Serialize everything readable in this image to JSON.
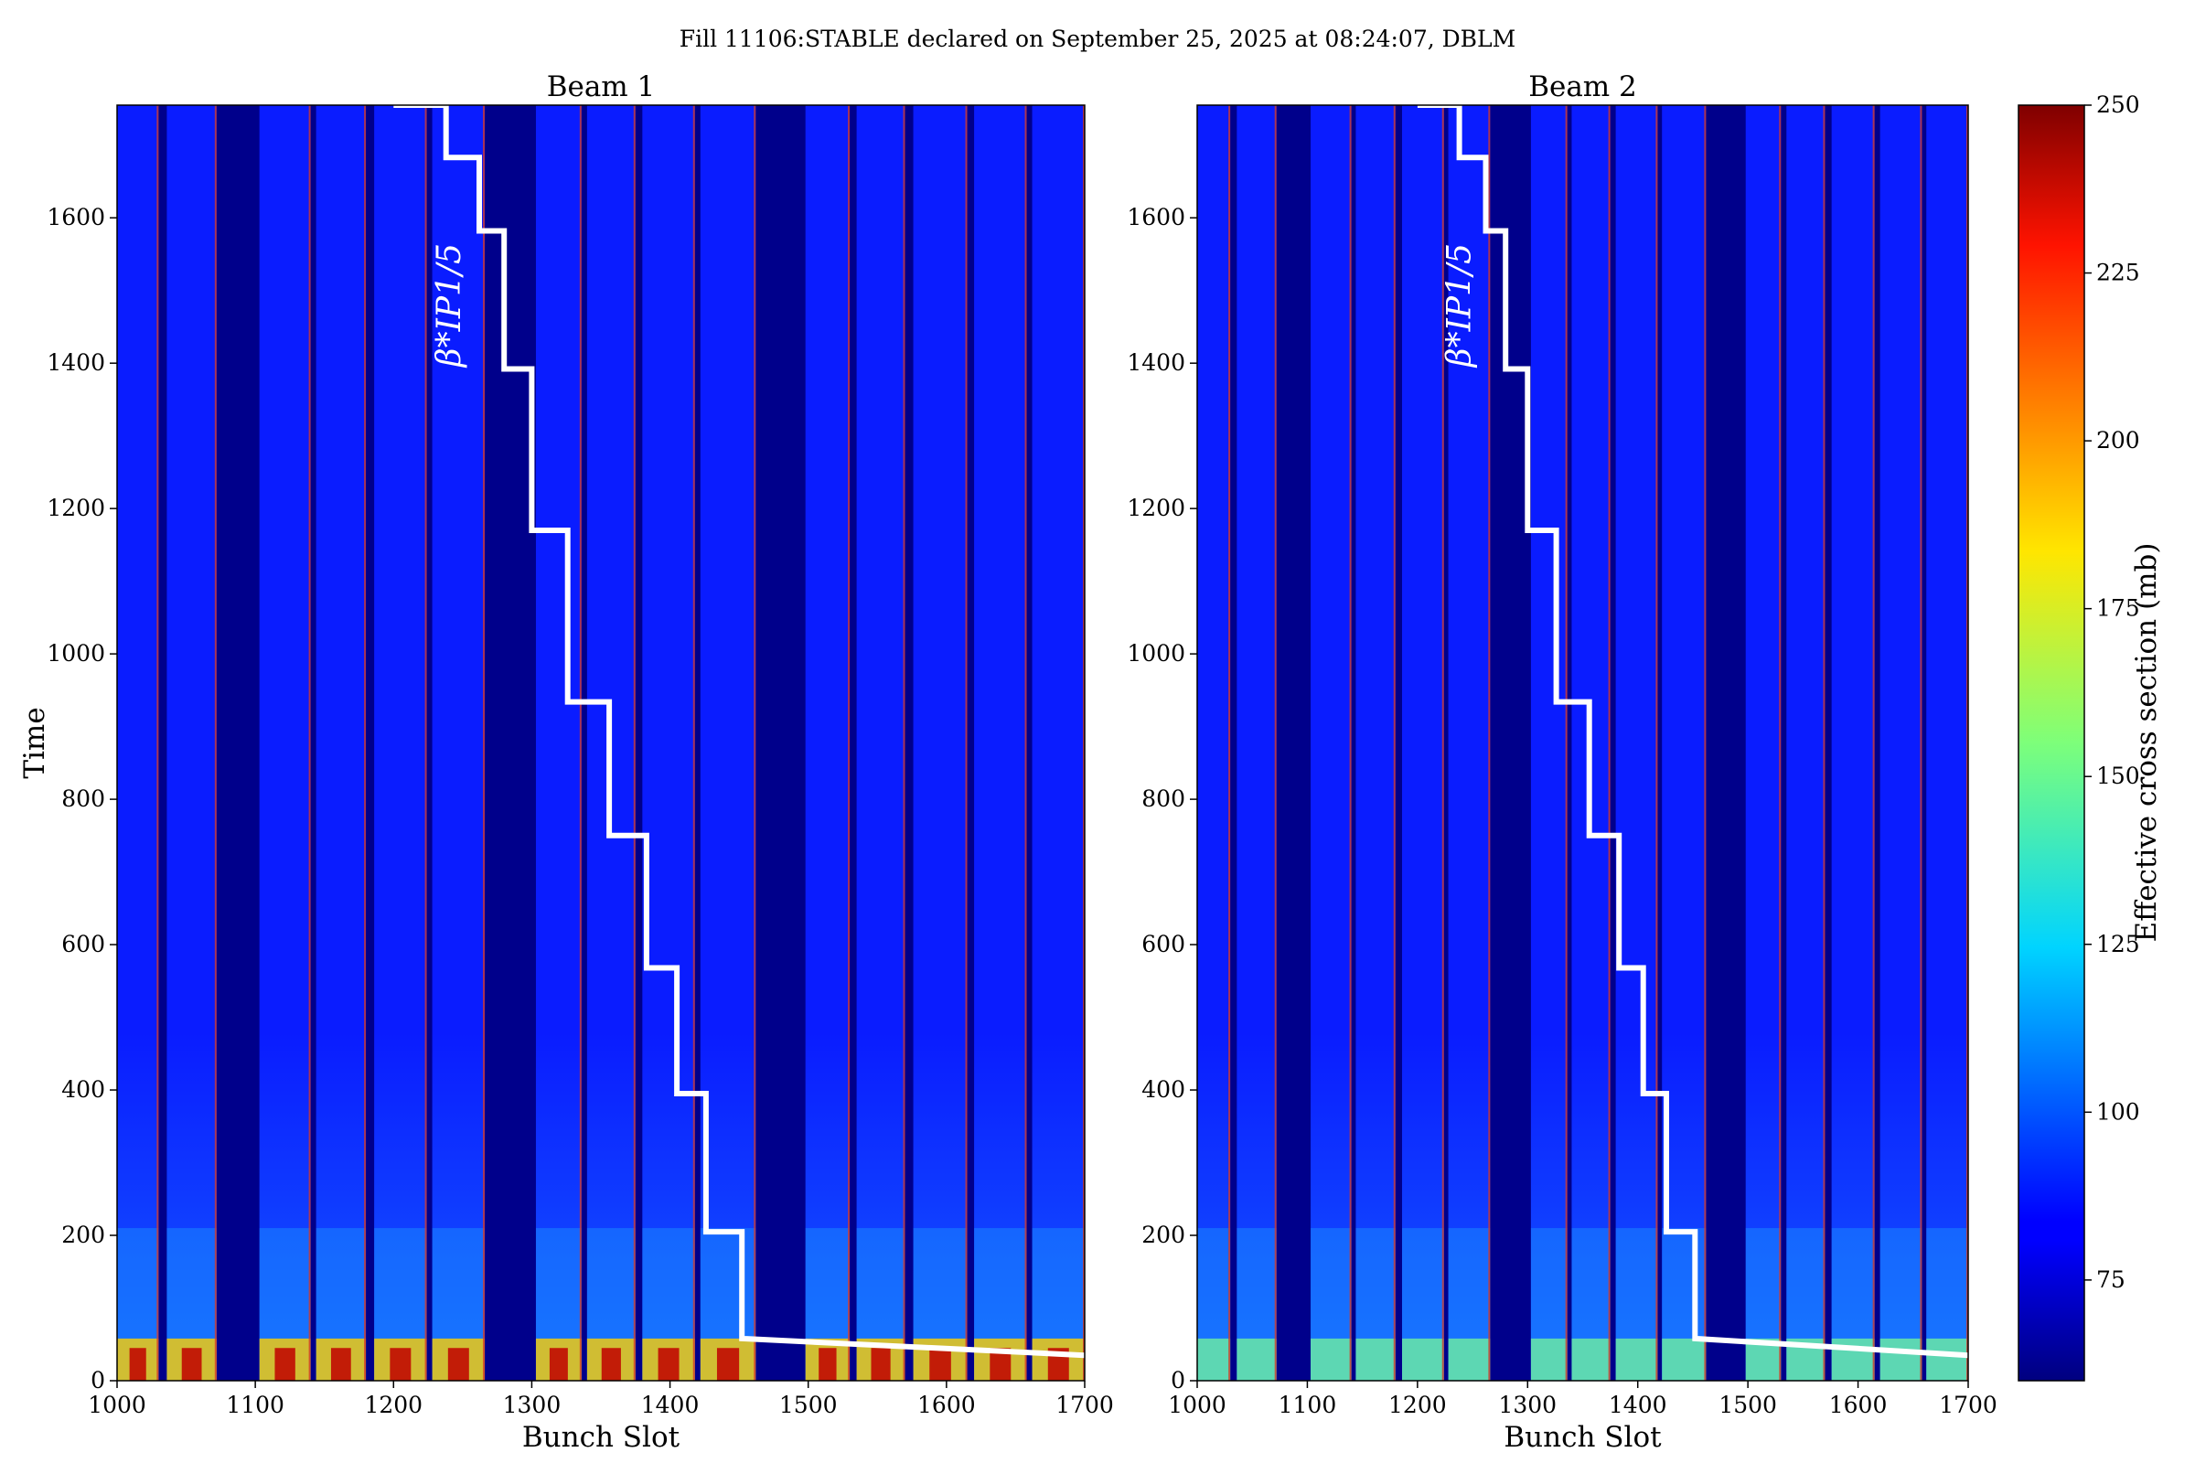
{
  "chart_data": {
    "type": "heatmap",
    "title": "Fill 11106:STABLE declared on September 25, 2025 at 08:24:07, DBLM",
    "panels": [
      {
        "title": "Beam 1",
        "xlabel": "Bunch Slot",
        "ylabel": "Time",
        "beta_label": "β*IP1/5",
        "x_ticks": [
          1000,
          1100,
          1200,
          1300,
          1400,
          1500,
          1600,
          1700
        ],
        "y_ticks": [
          0,
          200,
          400,
          600,
          800,
          1000,
          1200,
          1400,
          1600
        ],
        "xlim": [
          1000,
          1700
        ],
        "ylim": [
          0,
          1755
        ],
        "beta_step_line": [
          [
            1200,
            1755
          ],
          [
            1238,
            1755
          ],
          [
            1238,
            1683
          ],
          [
            1262,
            1683
          ],
          [
            1262,
            1582
          ],
          [
            1280,
            1582
          ],
          [
            1280,
            1392
          ],
          [
            1300,
            1392
          ],
          [
            1300,
            1170
          ],
          [
            1326,
            1170
          ],
          [
            1326,
            934
          ],
          [
            1356,
            934
          ],
          [
            1356,
            750
          ],
          [
            1383,
            750
          ],
          [
            1383,
            568
          ],
          [
            1405,
            568
          ],
          [
            1405,
            395
          ],
          [
            1426,
            395
          ],
          [
            1426,
            205
          ],
          [
            1452,
            205
          ],
          [
            1452,
            58
          ],
          [
            1700,
            35
          ]
        ],
        "filled_trains": [
          [
            1000,
            1030
          ],
          [
            1036,
            1072
          ],
          [
            1103,
            1140
          ],
          [
            1144,
            1180
          ],
          [
            1186,
            1224
          ],
          [
            1228,
            1266
          ],
          [
            1303,
            1336
          ],
          [
            1340,
            1375
          ],
          [
            1380,
            1418
          ],
          [
            1422,
            1462
          ],
          [
            1498,
            1530
          ],
          [
            1535,
            1570
          ],
          [
            1576,
            1615
          ],
          [
            1620,
            1658
          ],
          [
            1662,
            1700
          ]
        ]
      },
      {
        "title": "Beam 2",
        "xlabel": "Bunch Slot",
        "ylabel": "",
        "beta_label": "β*IP1/5",
        "x_ticks": [
          1000,
          1100,
          1200,
          1300,
          1400,
          1500,
          1600,
          1700
        ],
        "y_ticks": [
          0,
          200,
          400,
          600,
          800,
          1000,
          1200,
          1400,
          1600
        ],
        "xlim": [
          1000,
          1700
        ],
        "ylim": [
          0,
          1755
        ],
        "beta_step_line": [
          [
            1200,
            1755
          ],
          [
            1238,
            1755
          ],
          [
            1238,
            1683
          ],
          [
            1262,
            1683
          ],
          [
            1262,
            1582
          ],
          [
            1280,
            1582
          ],
          [
            1280,
            1392
          ],
          [
            1300,
            1392
          ],
          [
            1300,
            1170
          ],
          [
            1326,
            1170
          ],
          [
            1326,
            934
          ],
          [
            1356,
            934
          ],
          [
            1356,
            750
          ],
          [
            1383,
            750
          ],
          [
            1383,
            568
          ],
          [
            1405,
            568
          ],
          [
            1405,
            395
          ],
          [
            1426,
            395
          ],
          [
            1426,
            205
          ],
          [
            1452,
            205
          ],
          [
            1452,
            58
          ],
          [
            1700,
            35
          ]
        ],
        "filled_trains": [
          [
            1000,
            1030
          ],
          [
            1036,
            1072
          ],
          [
            1103,
            1140
          ],
          [
            1144,
            1180
          ],
          [
            1186,
            1224
          ],
          [
            1228,
            1266
          ],
          [
            1303,
            1336
          ],
          [
            1340,
            1375
          ],
          [
            1380,
            1418
          ],
          [
            1422,
            1462
          ],
          [
            1498,
            1530
          ],
          [
            1535,
            1570
          ],
          [
            1576,
            1615
          ],
          [
            1620,
            1658
          ],
          [
            1662,
            1700
          ]
        ]
      }
    ],
    "colorbar": {
      "label": "Effective cross section (mb)",
      "ticks": [
        75,
        100,
        125,
        150,
        175,
        200,
        225,
        250
      ],
      "range": [
        60,
        250
      ],
      "colormap": "jet"
    },
    "colors": {
      "background_empty": "#00008b",
      "filled_base": "#0a1cff",
      "hot_spot": "#c00000",
      "step_line": "#ffffff"
    }
  }
}
